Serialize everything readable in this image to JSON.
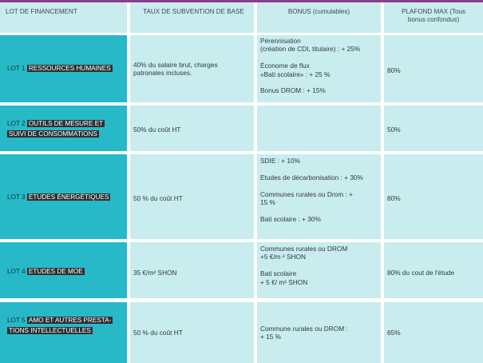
{
  "header": {
    "col1": "LOT DE FINANCEMENT",
    "col2": "TAUX DE SUBVENTION DE BASE",
    "col3": "BONUS (cumulables)",
    "col4": "PLAFOND MAX (Tous\nbonus confondus)"
  },
  "rows": [
    {
      "lot_prefix": "LOT 1 ",
      "lot_title_1": "RESSOURCES HUMAINES",
      "lot_title_2": "",
      "base_rate": "40% du salaire brut, charges\npatronales incluses.",
      "bonus": "Pérennisation\n(création de CDI, titulaire) : + 25%\n\nÉconome de flux\n«Bati scolaire» : + 25 %\n\nBonus DROM : + 15%",
      "ceiling": "80%"
    },
    {
      "lot_prefix": "LOT 2 ",
      "lot_title_1": "OUTILS DE MESURE ET",
      "lot_title_2": "SUIVI  DE CONSOMMATIONS",
      "base_rate": "50% du coût HT",
      "bonus": "",
      "ceiling": "50%"
    },
    {
      "lot_prefix": "LOT 3 ",
      "lot_title_1": "ÉTUDES ÉNERGÉTIQUES",
      "lot_title_2": "",
      "base_rate": "50 % du coût HT",
      "bonus": "SDIE : + 10%\n\nEtudes de décarbonisation : + 30%\n\nCommunes rurales ou Drom : +\n15 %\n\nBati scolaire : + 30%",
      "ceiling": "80%"
    },
    {
      "lot_prefix": "LOT 4 ",
      "lot_title_1": "ETUDES DE MOE",
      "lot_title_2": "",
      "base_rate": "35 €/m² SHON",
      "bonus": "Communes rurales ou DROM\n+5 €/m ² SHON\n\nBati scolaire\n+ 5 €/ m² SHON",
      "ceiling": "80% du cout de l'étude"
    },
    {
      "lot_prefix": "LOT 5 ",
      "lot_title_1": "AMO ET AUTRES PRESTA-",
      "lot_title_2": "TIONS INTELLECTUELLES",
      "base_rate": "50 % du coût HT",
      "bonus": "Commune rurales ou DROM :\n+ 15 %",
      "ceiling": "65%"
    }
  ],
  "colors": {
    "accent_bar": "#8e3a8e",
    "lot_cell": "#27b9c7",
    "table_cell": "#c9ecee",
    "label_highlight": "#2d3033"
  }
}
